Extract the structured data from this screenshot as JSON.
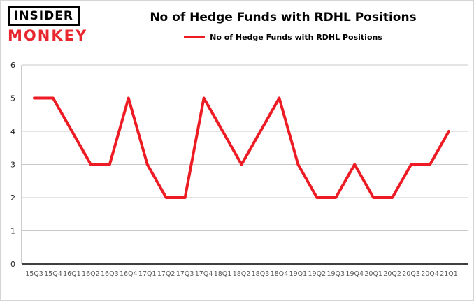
{
  "logo": {
    "line1": "INSIDER",
    "line2": "MONKEY"
  },
  "chart_data": {
    "type": "line",
    "title": "No of Hedge Funds with RDHL Positions",
    "legend": "No of Hedge Funds with RDHL Positions",
    "categories": [
      "15Q3",
      "15Q4",
      "16Q1",
      "16Q2",
      "16Q3",
      "16Q4",
      "17Q1",
      "17Q2",
      "17Q3",
      "17Q4",
      "18Q1",
      "18Q2",
      "18Q3",
      "18Q4",
      "19Q1",
      "19Q2",
      "19Q3",
      "19Q4",
      "20Q1",
      "20Q2",
      "20Q3",
      "20Q4",
      "21Q1"
    ],
    "series": [
      {
        "name": "No of Hedge Funds with RDHL Positions",
        "values": [
          5,
          5,
          4,
          3,
          3,
          5,
          3,
          2,
          2,
          5,
          4,
          3,
          4,
          5,
          3,
          2,
          2,
          3,
          2,
          2,
          3,
          3,
          4
        ]
      }
    ],
    "ylim": [
      0,
      6
    ],
    "yticks": [
      0,
      1,
      2,
      3,
      4,
      5,
      6
    ],
    "grid": true,
    "legend_position": "top",
    "xlabel": "",
    "ylabel": ""
  },
  "colors": {
    "line": "#ed1c24",
    "grid": "#c9c9c9",
    "bottom_axis": "#000000",
    "side_axis": "#999999",
    "x_tick_text": "#595959",
    "y_tick_text": "#222222",
    "logo_red": "#e8262d"
  }
}
